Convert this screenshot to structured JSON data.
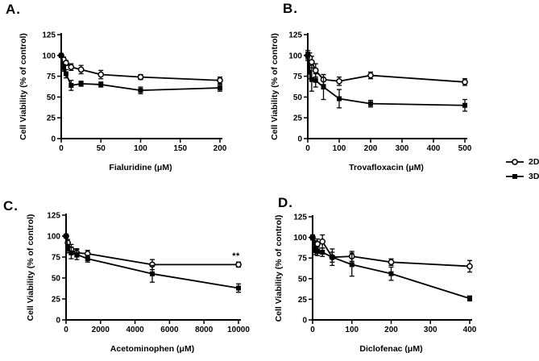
{
  "figure": {
    "background": "#ffffff",
    "color": "#000000"
  },
  "legend": {
    "items": [
      {
        "label": "2D",
        "marker": "open-circle"
      },
      {
        "label": "3D",
        "marker": "filled-square"
      }
    ]
  },
  "chart_data": [
    {
      "type": "line",
      "panel": "A.",
      "xlabel": "Fialuridine (μM)",
      "ylabel": "Cell Viability (% of control)",
      "xlim": [
        0,
        200
      ],
      "ylim": [
        0,
        125
      ],
      "xticks": [
        0,
        50,
        100,
        150,
        200
      ],
      "yticks": [
        0,
        25,
        50,
        75,
        100,
        125
      ],
      "grid": false,
      "series": [
        {
          "name": "2D",
          "marker": "open-circle",
          "x": [
            0,
            3,
            6,
            12.5,
            25,
            50,
            100,
            200
          ],
          "y": [
            100,
            95,
            91,
            86,
            83,
            77,
            74,
            70
          ],
          "err": [
            2,
            3,
            3,
            4,
            5,
            5,
            3,
            4
          ]
        },
        {
          "name": "3D",
          "marker": "filled-square",
          "x": [
            0,
            3,
            6,
            12.5,
            25,
            50,
            100,
            200
          ],
          "y": [
            100,
            85,
            78,
            64,
            66,
            65,
            58,
            61
          ],
          "err": [
            2,
            4,
            5,
            6,
            3,
            3,
            4,
            4
          ]
        }
      ]
    },
    {
      "type": "line",
      "panel": "B.",
      "xlabel": "Trovafloxacin (μM)",
      "ylabel": "Cell Viability (% of control)",
      "xlim": [
        0,
        500
      ],
      "ylim": [
        0,
        125
      ],
      "xticks": [
        0,
        100,
        200,
        300,
        400,
        500
      ],
      "yticks": [
        0,
        25,
        50,
        75,
        100,
        125
      ],
      "grid": false,
      "series": [
        {
          "name": "2D",
          "marker": "open-circle",
          "x": [
            0,
            6.25,
            12.5,
            25,
            50,
            100,
            200,
            500
          ],
          "y": [
            100,
            97,
            92,
            82,
            71,
            69,
            76,
            68
          ],
          "err": [
            6,
            6,
            7,
            8,
            6,
            5,
            4,
            4
          ]
        },
        {
          "name": "3D",
          "marker": "filled-square",
          "x": [
            0,
            6.25,
            12.5,
            25,
            50,
            100,
            200,
            500
          ],
          "y": [
            100,
            80,
            71,
            70,
            62,
            48,
            42,
            40
          ],
          "err": [
            4,
            8,
            14,
            8,
            15,
            11,
            4,
            7
          ]
        }
      ]
    },
    {
      "type": "line",
      "panel": "C.",
      "xlabel": "Acetominophen (μM)",
      "ylabel": "Cell Viability (% of control)",
      "xlim": [
        0,
        10000
      ],
      "ylim": [
        0,
        125
      ],
      "xticks": [
        0,
        2000,
        4000,
        6000,
        8000,
        10000
      ],
      "yticks": [
        0,
        25,
        50,
        75,
        100,
        125
      ],
      "grid": false,
      "annotation": {
        "text": "**",
        "x": 10000,
        "y": 76
      },
      "series": [
        {
          "name": "2D",
          "marker": "open-circle",
          "x": [
            0,
            100,
            300,
            625,
            1250,
            5000,
            10000
          ],
          "y": [
            100,
            92,
            84,
            80,
            79,
            66,
            66
          ],
          "err": [
            2,
            4,
            6,
            5,
            4,
            6,
            3
          ]
        },
        {
          "name": "3D",
          "marker": "filled-square",
          "x": [
            0,
            100,
            300,
            625,
            1250,
            5000,
            10000
          ],
          "y": [
            100,
            85,
            80,
            78,
            73,
            55,
            38
          ],
          "err": [
            2,
            5,
            7,
            6,
            4,
            10,
            5
          ]
        }
      ]
    },
    {
      "type": "line",
      "panel": "D.",
      "xlabel": "Diclofenac (μM)",
      "ylabel": "Cell Viability (% of control)",
      "xlim": [
        0,
        400
      ],
      "ylim": [
        0,
        125
      ],
      "xticks": [
        0,
        100,
        200,
        300,
        400
      ],
      "yticks": [
        0,
        25,
        50,
        75,
        100,
        125
      ],
      "grid": false,
      "series": [
        {
          "name": "2D",
          "marker": "open-circle",
          "x": [
            0,
            6.25,
            12.5,
            25,
            50,
            100,
            200,
            400
          ],
          "y": [
            100,
            90,
            92,
            95,
            76,
            77,
            70,
            65
          ],
          "err": [
            3,
            6,
            6,
            8,
            6,
            6,
            4,
            7
          ]
        },
        {
          "name": "3D",
          "marker": "filled-square",
          "x": [
            0,
            6.25,
            12.5,
            25,
            50,
            100,
            200,
            400
          ],
          "y": [
            100,
            84,
            83,
            82,
            76,
            67,
            56,
            26
          ],
          "err": [
            3,
            5,
            5,
            5,
            10,
            14,
            8,
            3
          ]
        }
      ]
    }
  ]
}
